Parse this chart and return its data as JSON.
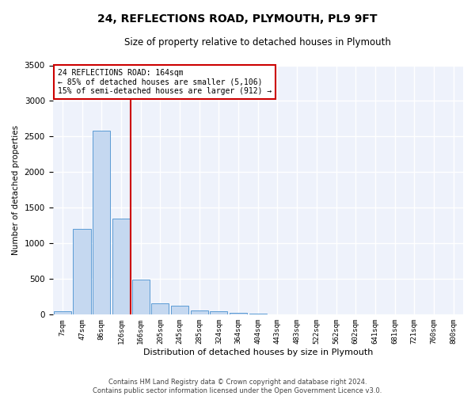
{
  "title": "24, REFLECTIONS ROAD, PLYMOUTH, PL9 9FT",
  "subtitle": "Size of property relative to detached houses in Plymouth",
  "xlabel": "Distribution of detached houses by size in Plymouth",
  "ylabel": "Number of detached properties",
  "categories": [
    "7sqm",
    "47sqm",
    "86sqm",
    "126sqm",
    "166sqm",
    "205sqm",
    "245sqm",
    "285sqm",
    "324sqm",
    "364sqm",
    "404sqm",
    "443sqm",
    "483sqm",
    "522sqm",
    "562sqm",
    "602sqm",
    "641sqm",
    "681sqm",
    "721sqm",
    "760sqm",
    "800sqm"
  ],
  "values": [
    50,
    1200,
    2580,
    1350,
    490,
    160,
    130,
    60,
    45,
    30,
    20,
    0,
    0,
    0,
    0,
    0,
    0,
    0,
    0,
    0,
    0
  ],
  "bar_color": "#c5d8f0",
  "bar_edge_color": "#5b9bd5",
  "vline_color": "#cc0000",
  "vline_index": 3.5,
  "annotation_title": "24 REFLECTIONS ROAD: 164sqm",
  "annotation_line1": "← 85% of detached houses are smaller (5,106)",
  "annotation_line2": "15% of semi-detached houses are larger (912) →",
  "annotation_box_edge_color": "#cc0000",
  "ylim": [
    0,
    3500
  ],
  "yticks": [
    0,
    500,
    1000,
    1500,
    2000,
    2500,
    3000,
    3500
  ],
  "background_color": "#eef2fb",
  "grid_color": "#ffffff",
  "footer1": "Contains HM Land Registry data © Crown copyright and database right 2024.",
  "footer2": "Contains public sector information licensed under the Open Government Licence v3.0.",
  "title_fontsize": 10,
  "subtitle_fontsize": 8.5,
  "ylabel_fontsize": 7.5,
  "xlabel_fontsize": 8,
  "ytick_fontsize": 7.5,
  "xtick_fontsize": 6.5,
  "annotation_fontsize": 7,
  "footer_fontsize": 6
}
